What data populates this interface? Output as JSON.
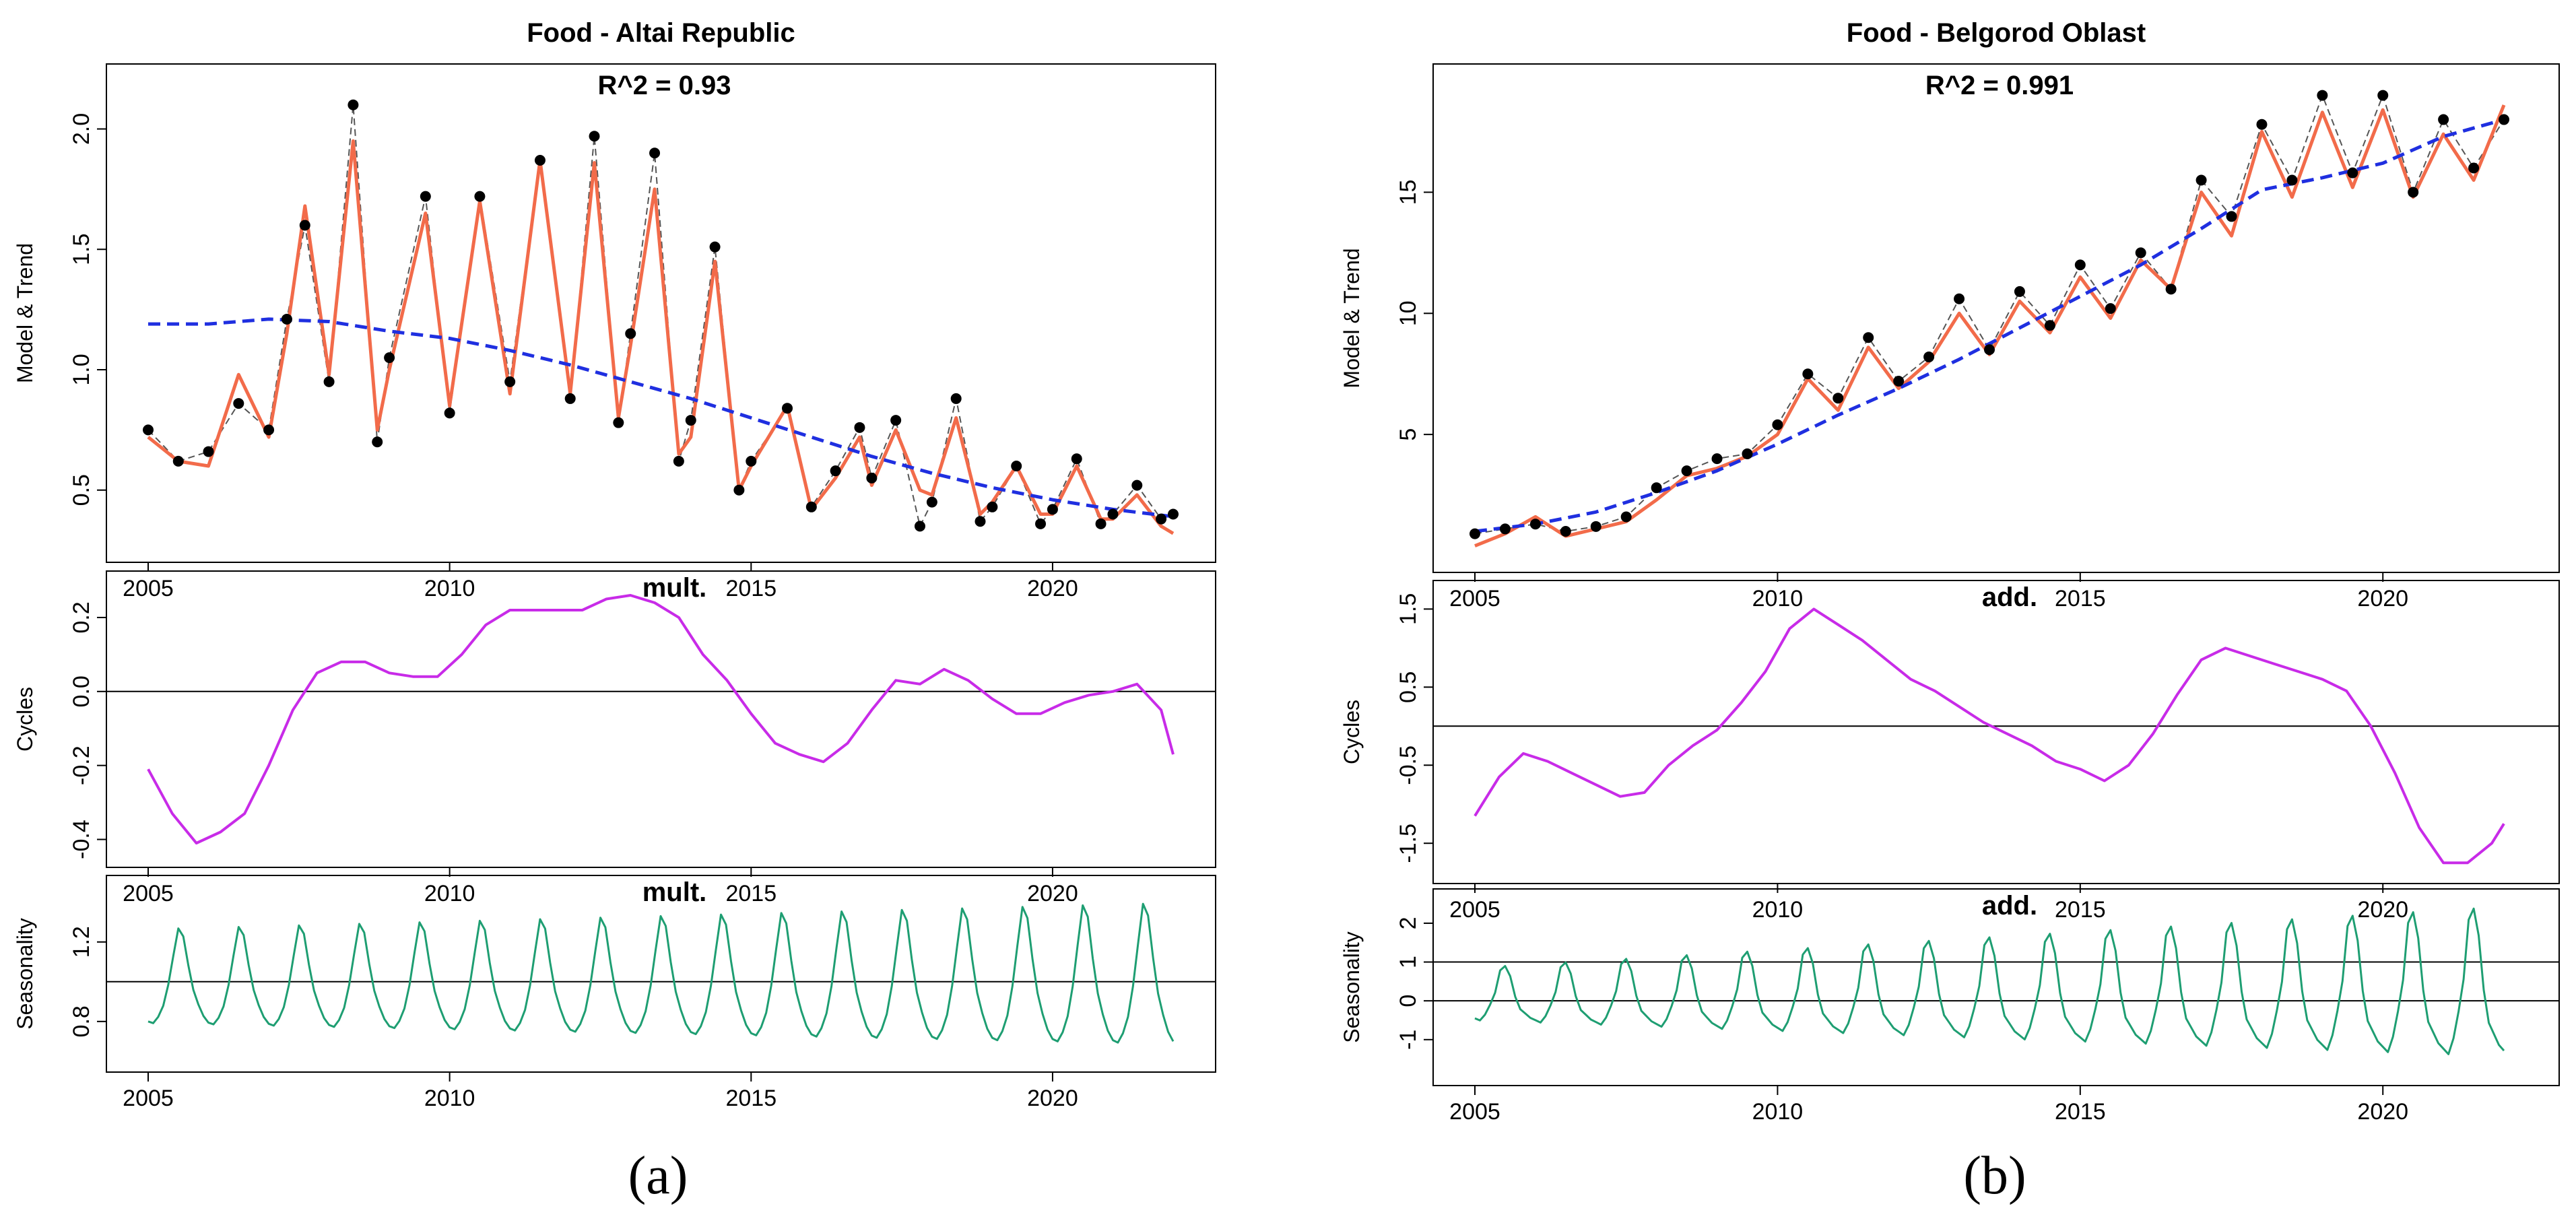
{
  "figure": {
    "caption_a": "(a)",
    "caption_b": "(b)"
  },
  "colors": {
    "points": "#000000",
    "data_line": "#555555",
    "model": "#f26b4a",
    "trend": "#1f2fe0",
    "cycles": "#c82be8",
    "seasonality": "#1e9e72",
    "reference": "#000000"
  },
  "chart_data": [
    {
      "type": "line",
      "title": "Food - Altai Republic",
      "annotation": "R^2 = 0.93",
      "ylabel": "Model & Trend",
      "xlim": [
        2005,
        2022
      ],
      "ylim": [
        0.27,
        2.2
      ],
      "yticks": [
        "0.5",
        "1.0",
        "1.5",
        "2.0"
      ],
      "yticks_values": [
        0.5,
        1.0,
        1.5,
        2.0
      ],
      "xticks": [
        "2005",
        "2010",
        "2015",
        "2020"
      ],
      "xticks_values": [
        2005,
        2010,
        2015,
        2020
      ],
      "series": [
        {
          "kind": "points",
          "x": [
            2005.0,
            2005.5,
            2006.0,
            2006.5,
            2007.0,
            2007.3,
            2007.6,
            2008.0,
            2008.4,
            2008.8,
            2009.0,
            2009.6,
            2010.0,
            2010.5,
            2011.0,
            2011.5,
            2012.0,
            2012.4,
            2012.8,
            2013.0,
            2013.4,
            2013.8,
            2014.0,
            2014.4,
            2014.8,
            2015.0,
            2015.6,
            2016.0,
            2016.4,
            2016.8,
            2017.0,
            2017.4,
            2017.8,
            2018.0,
            2018.4,
            2018.8,
            2019.0,
            2019.4,
            2019.8,
            2020.0,
            2020.4,
            2020.8,
            2021.0,
            2021.4,
            2021.8,
            2022.0
          ],
          "y": [
            0.75,
            0.62,
            0.66,
            0.86,
            0.75,
            1.21,
            1.6,
            0.95,
            2.1,
            0.7,
            1.05,
            1.72,
            0.82,
            1.72,
            0.95,
            1.87,
            0.88,
            1.97,
            0.78,
            1.15,
            1.9,
            0.62,
            0.79,
            1.51,
            0.5,
            0.62,
            0.84,
            0.43,
            0.58,
            0.76,
            0.55,
            0.79,
            0.35,
            0.45,
            0.88,
            0.37,
            0.43,
            0.6,
            0.36,
            0.42,
            0.63,
            0.36,
            0.4,
            0.52,
            0.38,
            0.4
          ]
        },
        {
          "kind": "line",
          "name": "",
          "x": [
            2005.0,
            2005.5,
            2006.0,
            2006.5,
            2007.0,
            2007.3,
            2007.6,
            2008.0,
            2008.4,
            2008.8,
            2009.0,
            2009.6,
            2010.0,
            2010.5,
            2011.0,
            2011.5,
            2012.0,
            2012.4,
            2012.8,
            2013.0,
            2013.4,
            2013.8,
            2014.0,
            2014.4,
            2014.8,
            2015.0,
            2015.6,
            2016.0,
            2016.4,
            2016.8,
            2017.0,
            2017.4,
            2017.8,
            2018.0,
            2018.4,
            2018.8,
            2019.0,
            2019.4,
            2019.8,
            2020.0,
            2020.4,
            2020.8,
            2021.0,
            2021.4,
            2021.8,
            2022.0
          ],
          "y": [
            0.72,
            0.62,
            0.6,
            0.98,
            0.72,
            1.15,
            1.68,
            0.98,
            1.95,
            0.75,
            1.0,
            1.65,
            0.85,
            1.7,
            0.9,
            1.87,
            0.9,
            1.86,
            0.8,
            1.1,
            1.75,
            0.65,
            0.72,
            1.45,
            0.5,
            0.6,
            0.85,
            0.42,
            0.55,
            0.72,
            0.52,
            0.75,
            0.5,
            0.48,
            0.8,
            0.4,
            0.45,
            0.6,
            0.4,
            0.4,
            0.6,
            0.38,
            0.38,
            0.48,
            0.35,
            0.32
          ]
        },
        {
          "kind": "trend",
          "x": [
            2005,
            2006,
            2007,
            2008,
            2009,
            2010,
            2011,
            2012,
            2013,
            2014,
            2015,
            2016,
            2017,
            2018,
            2019,
            2020,
            2021,
            2022
          ],
          "y": [
            1.19,
            1.19,
            1.21,
            1.2,
            1.16,
            1.13,
            1.08,
            1.02,
            0.95,
            0.88,
            0.8,
            0.72,
            0.64,
            0.57,
            0.51,
            0.46,
            0.42,
            0.39
          ]
        }
      ]
    },
    {
      "type": "line",
      "ylabel": "Cycles",
      "tag": "mult.",
      "xlim": [
        2005,
        2022
      ],
      "ylim": [
        -0.43,
        0.28
      ],
      "yticks": [
        "-0.4",
        "-0.2",
        "0.0",
        "0.2"
      ],
      "yticks_values": [
        -0.4,
        -0.2,
        0.0,
        0.2
      ],
      "xticks": [
        "2005",
        "2010",
        "2015",
        "2020"
      ],
      "xticks_values": [
        2005,
        2010,
        2015,
        2020
      ],
      "reference_line": 0,
      "x": [
        2005.0,
        2005.4,
        2005.8,
        2006.2,
        2006.6,
        2007.0,
        2007.4,
        2007.8,
        2008.2,
        2008.6,
        2009.0,
        2009.4,
        2009.8,
        2010.2,
        2010.6,
        2011.0,
        2011.4,
        2011.8,
        2012.2,
        2012.6,
        2013.0,
        2013.4,
        2013.8,
        2014.2,
        2014.6,
        2015.0,
        2015.4,
        2015.8,
        2016.2,
        2016.6,
        2017.0,
        2017.4,
        2017.8,
        2018.2,
        2018.6,
        2019.0,
        2019.4,
        2019.8,
        2020.2,
        2020.6,
        2021.0,
        2021.4,
        2021.8,
        2022.0
      ],
      "y": [
        -0.21,
        -0.33,
        -0.41,
        -0.38,
        -0.33,
        -0.2,
        -0.05,
        0.05,
        0.08,
        0.08,
        0.05,
        0.04,
        0.04,
        0.1,
        0.18,
        0.22,
        0.22,
        0.22,
        0.22,
        0.25,
        0.26,
        0.24,
        0.2,
        0.1,
        0.03,
        -0.06,
        -0.14,
        -0.17,
        -0.19,
        -0.14,
        -0.05,
        0.03,
        0.02,
        0.06,
        0.03,
        -0.02,
        -0.06,
        -0.06,
        -0.03,
        -0.01,
        0.0,
        0.02,
        -0.05,
        -0.17
      ]
    },
    {
      "type": "line",
      "ylabel": "Seasonality",
      "tag": "mult.",
      "xlim": [
        2005,
        2022
      ],
      "ylim": [
        0.63,
        1.45
      ],
      "yticks": [
        "0.8",
        "1.2"
      ],
      "yticks_values": [
        0.8,
        1.2
      ],
      "xticks": [
        "2005",
        "2010",
        "2015",
        "2020"
      ],
      "xticks_values": [
        2005,
        2010,
        2015,
        2020
      ],
      "reference_line": 1.0,
      "seasonal_pattern": [
        0.75,
        0.74,
        0.78,
        0.85,
        0.98,
        1.16,
        1.33,
        1.28,
        1.1,
        0.95,
        0.86,
        0.79
      ],
      "amplitude_start": 0.72,
      "amplitude_end": 1.15
    },
    {
      "type": "line",
      "title": "Food - Belgorod Oblast",
      "annotation": "R^2 = 0.991",
      "ylabel": "Model & Trend",
      "xlim": [
        2005,
        2022
      ],
      "ylim": [
        0.0,
        19.6
      ],
      "yticks": [
        "5",
        "10",
        "15"
      ],
      "yticks_values": [
        5,
        10,
        15
      ],
      "xticks": [
        "2005",
        "2010",
        "2015",
        "2020"
      ],
      "xticks_values": [
        2005,
        2010,
        2015,
        2020
      ],
      "series": [
        {
          "kind": "points",
          "x": [
            2005.0,
            2005.5,
            2006.0,
            2006.5,
            2007.0,
            2007.5,
            2008.0,
            2008.5,
            2009.0,
            2009.5,
            2010.0,
            2010.5,
            2011.0,
            2011.5,
            2012.0,
            2012.5,
            2013.0,
            2013.5,
            2014.0,
            2014.5,
            2015.0,
            2015.5,
            2016.0,
            2016.5,
            2017.0,
            2017.5,
            2018.0,
            2018.5,
            2019.0,
            2019.5,
            2020.0,
            2020.5,
            2021.0,
            2021.5,
            2022.0
          ],
          "y": [
            0.9,
            1.1,
            1.3,
            1.0,
            1.2,
            1.6,
            2.8,
            3.5,
            4.0,
            4.2,
            5.4,
            7.5,
            6.5,
            9.0,
            7.2,
            8.2,
            10.6,
            8.5,
            10.9,
            9.5,
            12.0,
            10.2,
            12.5,
            11.0,
            15.5,
            14.0,
            17.8,
            15.5,
            19.0,
            15.8,
            19.0,
            15.0,
            18.0,
            16.0,
            18.0
          ]
        },
        {
          "kind": "line",
          "name": "",
          "x": [
            2005.0,
            2005.5,
            2006.0,
            2006.5,
            2007.0,
            2007.5,
            2008.0,
            2008.5,
            2009.0,
            2009.5,
            2010.0,
            2010.5,
            2011.0,
            2011.5,
            2012.0,
            2012.5,
            2013.0,
            2013.5,
            2014.0,
            2014.5,
            2015.0,
            2015.5,
            2016.0,
            2016.5,
            2017.0,
            2017.5,
            2018.0,
            2018.5,
            2019.0,
            2019.5,
            2020.0,
            2020.5,
            2021.0,
            2021.5,
            2022.0
          ],
          "y": [
            0.4,
            0.9,
            1.6,
            0.8,
            1.1,
            1.4,
            2.3,
            3.3,
            3.6,
            4.1,
            5.0,
            7.3,
            6.0,
            8.6,
            6.9,
            8.0,
            10.0,
            8.3,
            10.5,
            9.2,
            11.5,
            9.8,
            12.2,
            11.0,
            15.0,
            13.2,
            17.5,
            14.8,
            18.3,
            15.2,
            18.4,
            14.8,
            17.4,
            15.5,
            18.6
          ]
        },
        {
          "kind": "trend",
          "x": [
            2005,
            2006,
            2007,
            2008,
            2009,
            2010,
            2011,
            2012,
            2013,
            2014,
            2015,
            2016,
            2017,
            2018,
            2019,
            2020,
            2021,
            2022
          ],
          "y": [
            1.0,
            1.3,
            1.8,
            2.6,
            3.5,
            4.6,
            5.8,
            6.9,
            8.1,
            9.4,
            10.7,
            12.0,
            13.5,
            15.1,
            15.6,
            16.2,
            17.3,
            18.0
          ]
        }
      ]
    },
    {
      "type": "line",
      "ylabel": "Cycles",
      "tag": "add.",
      "xlim": [
        2005,
        2022
      ],
      "ylim": [
        -1.8,
        1.65
      ],
      "yticks": [
        "-1.5",
        "-0.5",
        "0.5",
        "1.5"
      ],
      "yticks_values": [
        -1.5,
        -0.5,
        0.5,
        1.5
      ],
      "xticks": [
        "2005",
        "2010",
        "2015",
        "2020"
      ],
      "xticks_values": [
        2005,
        2010,
        2015,
        2020
      ],
      "reference_line": 0,
      "x": [
        2005.0,
        2005.4,
        2005.8,
        2006.2,
        2006.6,
        2007.0,
        2007.4,
        2007.8,
        2008.2,
        2008.6,
        2009.0,
        2009.4,
        2009.8,
        2010.2,
        2010.6,
        2011.0,
        2011.4,
        2011.8,
        2012.2,
        2012.6,
        2013.0,
        2013.4,
        2013.8,
        2014.2,
        2014.6,
        2015.0,
        2015.4,
        2015.8,
        2016.2,
        2016.6,
        2017.0,
        2017.4,
        2017.8,
        2018.2,
        2018.6,
        2019.0,
        2019.4,
        2019.8,
        2020.2,
        2020.6,
        2021.0,
        2021.4,
        2021.8,
        2022.0
      ],
      "y": [
        -1.15,
        -0.65,
        -0.35,
        -0.45,
        -0.6,
        -0.75,
        -0.9,
        -0.85,
        -0.5,
        -0.25,
        -0.05,
        0.3,
        0.7,
        1.25,
        1.5,
        1.3,
        1.1,
        0.85,
        0.6,
        0.45,
        0.25,
        0.05,
        -0.1,
        -0.25,
        -0.45,
        -0.55,
        -0.7,
        -0.5,
        -0.1,
        0.4,
        0.85,
        1.0,
        0.9,
        0.8,
        0.7,
        0.6,
        0.45,
        0.0,
        -0.6,
        -1.3,
        -1.75,
        -1.75,
        -1.5,
        -1.25
      ]
    },
    {
      "type": "line",
      "ylabel": "Seasonality",
      "tag": "add.",
      "xlim": [
        2005,
        2022
      ],
      "ylim": [
        -1.75,
        2.45
      ],
      "yticks": [
        "-1",
        "0",
        "1",
        "2"
      ],
      "yticks_values": [
        -1,
        0,
        1,
        2
      ],
      "xticks": [
        "2005",
        "2010",
        "2015",
        "2020"
      ],
      "xticks_values": [
        2005,
        2010,
        2015,
        2020
      ],
      "reference_line": 0,
      "reference_line_2": 1,
      "seasonal_pattern": [
        -0.45,
        -0.5,
        -0.35,
        -0.1,
        0.2,
        0.75,
        0.85,
        0.6,
        0.1,
        -0.2,
        -0.3,
        -0.4
      ],
      "amplitude_start": 1.0,
      "amplitude_end": 2.85
    }
  ]
}
